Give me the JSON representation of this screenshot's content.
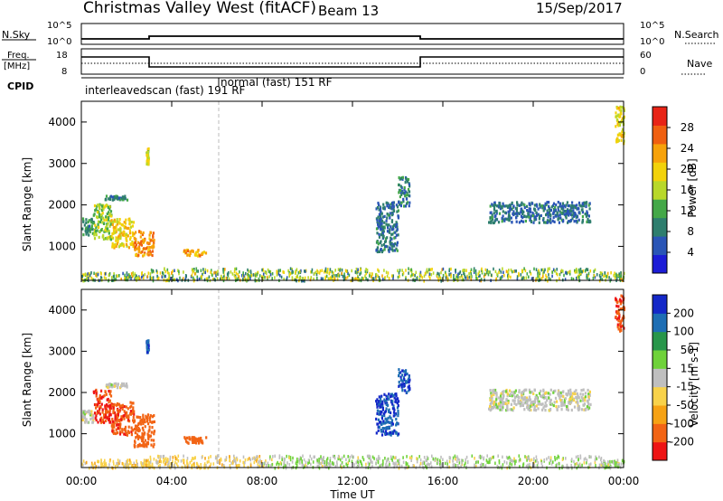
{
  "header": {
    "title": "Christmas Valley West (fitACF)",
    "beam": "Beam 13",
    "date": "15/Sep/2017"
  },
  "panels": {
    "nsky_label": "N.Sky",
    "nsky_ticks": [
      "10^5",
      "10^0"
    ],
    "nsearch_label": "N.Search",
    "freq_label_1": "Freq.",
    "freq_label_2": "[MHz]",
    "freq_ticks": [
      "18",
      "8"
    ],
    "nave_ticks": [
      "60",
      "0"
    ],
    "nave_label": "Nave",
    "cpid_label": "CPID",
    "cpid_segments": [
      {
        "text": "interleavedscan (fast)  191  RF"
      },
      {
        "text": "normal (fast)  151  RF"
      }
    ]
  },
  "colors": {
    "power_scale": [
      "#1c1cd6",
      "#2a55b6",
      "#2e7e6e",
      "#44a848",
      "#b8d82a",
      "#f2d20a",
      "#f7a20a",
      "#f06010",
      "#e82416"
    ],
    "velocity_scale": [
      "#ee1414",
      "#f26414",
      "#f6a214",
      "#f8d24a",
      "#bfbfbf",
      "#6fd23a",
      "#28964a",
      "#1e6eb4",
      "#1428c8"
    ]
  },
  "chart_data": [
    {
      "type": "heatmap",
      "title": "Power",
      "ylabel": "Slant Range [km]",
      "xlabel": "",
      "ylim": [
        180,
        4500
      ],
      "yticks": [
        1000,
        2000,
        3000,
        4000
      ],
      "colorbar_label": "Power [dB]",
      "colorbar_ticks": [
        "28",
        "24",
        "20",
        "16",
        "12",
        "8",
        "4"
      ],
      "features": [
        {
          "t0": 0.0,
          "t1": 0.5,
          "r0": 1300,
          "r1": 1700,
          "intensity": 9
        },
        {
          "t0": 0.5,
          "t1": 1.3,
          "r0": 1200,
          "r1": 2050,
          "intensity": 14
        },
        {
          "t0": 1.3,
          "t1": 2.3,
          "r0": 1000,
          "r1": 1700,
          "intensity": 19
        },
        {
          "t0": 2.3,
          "t1": 3.2,
          "r0": 800,
          "r1": 1400,
          "intensity": 24
        },
        {
          "t0": 1.0,
          "t1": 2.0,
          "r0": 2150,
          "r1": 2250,
          "intensity": 8
        },
        {
          "t0": 2.85,
          "t1": 2.95,
          "r0": 3000,
          "r1": 3400,
          "intensity": 17
        },
        {
          "t0": 4.5,
          "t1": 5.5,
          "r0": 800,
          "r1": 950,
          "intensity": 22
        },
        {
          "t0": 13.0,
          "t1": 14.0,
          "r0": 900,
          "r1": 2100,
          "intensity": 6
        },
        {
          "t0": 14.0,
          "t1": 14.5,
          "r0": 2000,
          "r1": 2700,
          "intensity": 7
        },
        {
          "t0": 18.0,
          "t1": 22.5,
          "r0": 1600,
          "r1": 2100,
          "intensity": 6
        },
        {
          "t0": 23.6,
          "t1": 24.0,
          "r0": 3500,
          "r1": 4400,
          "intensity": 18
        }
      ]
    },
    {
      "type": "heatmap",
      "title": "Velocity",
      "ylabel": "Slant Range [km]",
      "xlabel": "Time UT",
      "ylim": [
        180,
        4500
      ],
      "yticks": [
        1000,
        2000,
        3000,
        4000
      ],
      "colorbar_label": "Velocity [m s-1]",
      "colorbar_ticks": [
        "200",
        "100",
        "50",
        "15",
        "-15",
        "-50",
        "-100",
        "-200"
      ],
      "xticks": [
        "00:00",
        "04:00",
        "08:00",
        "12:00",
        "16:00",
        "20:00",
        "00:00"
      ],
      "features": [
        {
          "t0": 0.0,
          "t1": 0.5,
          "r0": 1300,
          "r1": 1600,
          "velocity": 0
        },
        {
          "t0": 0.5,
          "t1": 1.3,
          "r0": 1300,
          "r1": 2100,
          "velocity": -200
        },
        {
          "t0": 1.3,
          "t1": 2.3,
          "r0": 1000,
          "r1": 1800,
          "velocity": -190
        },
        {
          "t0": 2.3,
          "t1": 3.2,
          "r0": 700,
          "r1": 1500,
          "velocity": -180
        },
        {
          "t0": 1.0,
          "t1": 2.0,
          "r0": 2150,
          "r1": 2250,
          "velocity": 0
        },
        {
          "t0": 2.85,
          "t1": 2.95,
          "r0": 3000,
          "r1": 3300,
          "velocity": 200
        },
        {
          "t0": 4.5,
          "t1": 5.5,
          "r0": 800,
          "r1": 950,
          "velocity": -150
        },
        {
          "t0": 13.0,
          "t1": 14.0,
          "r0": 1000,
          "r1": 2000,
          "velocity": 200
        },
        {
          "t0": 14.0,
          "t1": 14.5,
          "r0": 2000,
          "r1": 2600,
          "velocity": 200
        },
        {
          "t0": 18.0,
          "t1": 22.5,
          "r0": 1600,
          "r1": 2100,
          "velocity": 0
        },
        {
          "t0": 23.6,
          "t1": 24.0,
          "r0": 3500,
          "r1": 4400,
          "velocity": -200
        }
      ]
    }
  ]
}
